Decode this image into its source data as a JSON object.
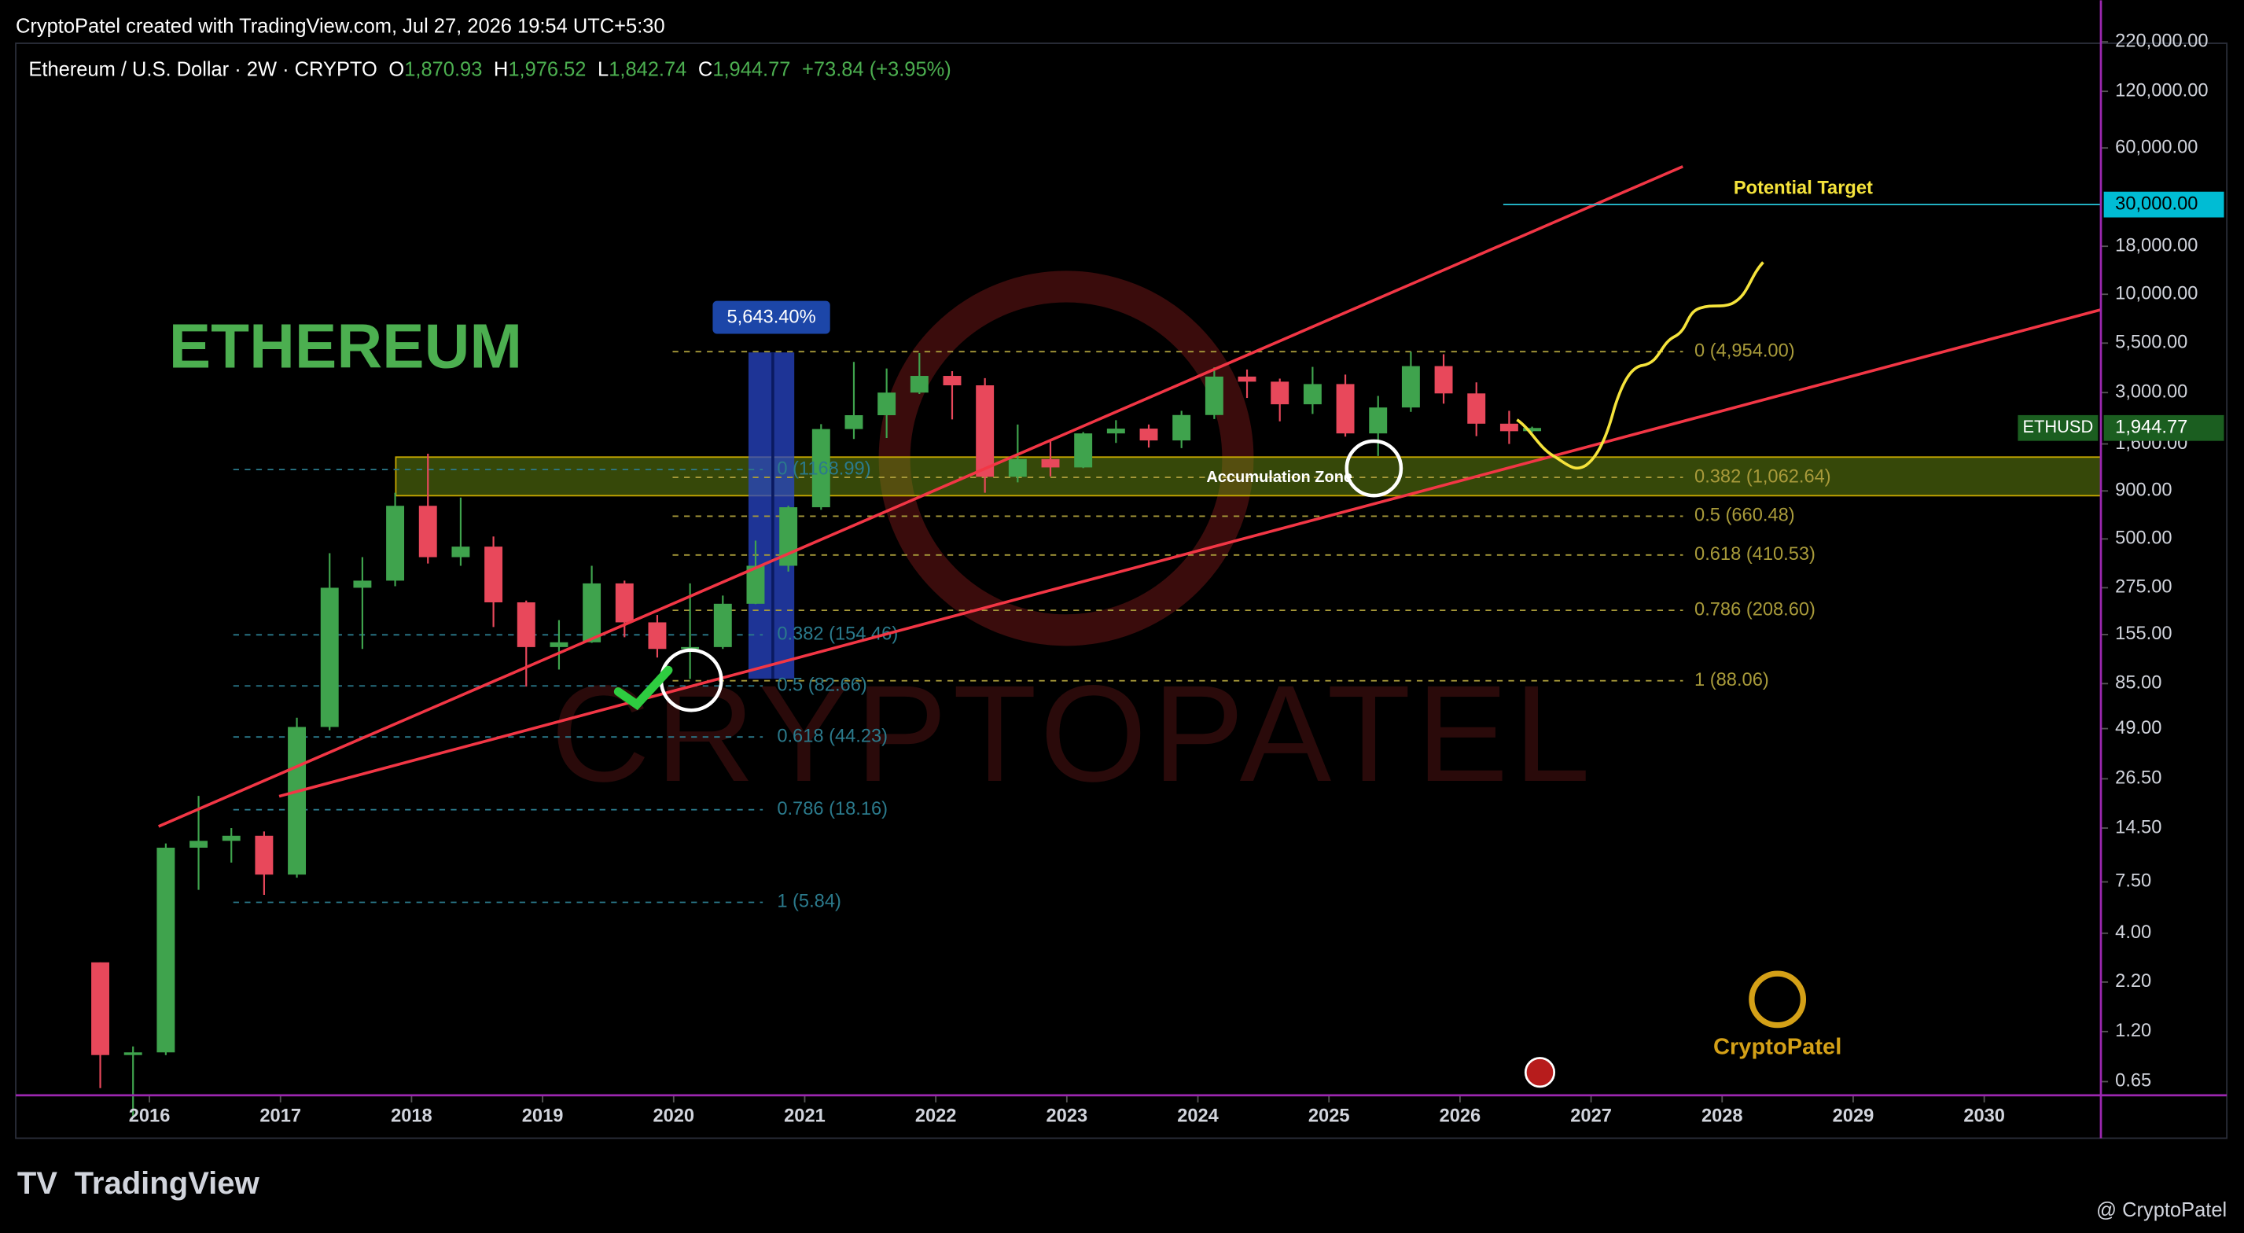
{
  "header": {
    "credit": "CryptoPatel created with TradingView.com, Jul 27, 2026 19:54 UTC+5:30",
    "symbol": "Ethereum / U.S. Dollar · 2W · CRYPTO",
    "ohlc": [
      {
        "key": "O",
        "value": "1,870.93"
      },
      {
        "key": "H",
        "value": "1,976.52"
      },
      {
        "key": "L",
        "value": "1,842.74"
      },
      {
        "key": "C",
        "value": "1,944.77"
      }
    ],
    "change": "+73.84 (+3.95%)"
  },
  "chart_data": {
    "type": "candlestick",
    "title": "ETHEREUM",
    "log_scale": true,
    "up_color": "#3fa34d",
    "down_color": "#e8485b",
    "x": [
      2015.625,
      2015.875,
      2016.125,
      2016.375,
      2016.625,
      2016.875,
      2017.125,
      2017.375,
      2017.625,
      2017.875,
      2018.125,
      2018.375,
      2018.625,
      2018.875,
      2019.125,
      2019.375,
      2019.625,
      2019.875,
      2020.125,
      2020.375,
      2020.625,
      2020.875,
      2021.125,
      2021.375,
      2021.625,
      2021.875,
      2022.125,
      2022.375,
      2022.625,
      2022.875,
      2023.125,
      2023.375,
      2023.625,
      2023.875,
      2024.125,
      2024.375,
      2024.625,
      2024.875,
      2025.125,
      2025.375,
      2025.625,
      2025.875,
      2026.125,
      2026.375,
      2026.55
    ],
    "open": [
      2.8,
      0.9,
      0.93,
      11.4,
      12.4,
      13.2,
      8.2,
      50,
      275,
      300,
      750,
      400,
      455,
      230,
      133,
      141,
      290,
      180,
      130,
      133,
      226,
      360,
      737,
      1920,
      2275,
      3000,
      3680,
      3280,
      1070,
      1330,
      1200,
      1820,
      1930,
      1670,
      2280,
      3650,
      3430,
      2600,
      3330,
      1820,
      2500,
      4150,
      2970,
      2050,
      1870.93
    ],
    "high": [
      2.8,
      1.0,
      12,
      21.5,
      14.5,
      13.9,
      56,
      420,
      400,
      880,
      1420,
      830,
      515,
      235,
      185,
      360,
      300,
      197,
      290,
      250,
      490,
      750,
      2040,
      4370,
      4030,
      4870,
      3900,
      3580,
      2030,
      1680,
      1850,
      2140,
      2030,
      2400,
      4090,
      3980,
      3560,
      4110,
      3740,
      2880,
      4950,
      4800,
      3400,
      2400,
      1976.52
    ],
    "low": [
      0.6,
      0.42,
      0.9,
      6.8,
      9.5,
      6.4,
      7.9,
      48,
      130,
      280,
      370,
      360,
      170,
      82,
      101,
      140,
      150,
      117,
      90,
      130,
      225,
      335,
      715,
      1700,
      1720,
      2950,
      2160,
      880,
      1000,
      1075,
      1190,
      1620,
      1530,
      1520,
      2170,
      2810,
      2110,
      2310,
      1750,
      1380,
      2370,
      2620,
      1760,
      1600,
      1842.74
    ],
    "close": [
      0.9,
      0.93,
      11.4,
      12.4,
      13.2,
      8.2,
      50,
      275,
      300,
      750,
      400,
      455,
      230,
      133,
      141,
      290,
      180,
      130,
      133,
      226,
      360,
      737,
      1920,
      2275,
      3000,
      3680,
      3280,
      1070,
      1330,
      1200,
      1820,
      1930,
      1670,
      2280,
      3650,
      3430,
      2600,
      3330,
      1820,
      2500,
      4150,
      2970,
      2050,
      1870,
      1944.77
    ],
    "xlim": [
      2014.98,
      2030.89
    ],
    "xticks": [
      2016,
      2017,
      2018,
      2019,
      2020,
      2021,
      2022,
      2023,
      2024,
      2025,
      2026,
      2027,
      2028,
      2029,
      2030
    ],
    "ylim": [
      0.55,
      220000
    ],
    "yticks": [
      0.65,
      {
        "value": 1.2,
        "label": "1.20"
      },
      {
        "value": 2.2,
        "label": "2.20"
      },
      {
        "value": 4,
        "label": "4.00"
      },
      {
        "value": 7.5,
        "label": "7.50"
      },
      {
        "value": 14.5,
        "label": "14.50"
      },
      {
        "value": 26.5,
        "label": "26.50"
      },
      {
        "value": 49,
        "label": "49.00"
      },
      {
        "value": 85,
        "label": "85.00"
      },
      {
        "value": 155,
        "label": "155.00"
      },
      {
        "value": 275,
        "label": "275.00"
      },
      {
        "value": 500,
        "label": "500.00"
      },
      {
        "value": 900,
        "label": "900.00"
      },
      {
        "value": 1600,
        "label": "1,600.00"
      },
      {
        "value": 3000,
        "label": "3,000.00"
      },
      {
        "value": 5500,
        "label": "5,500.00"
      },
      {
        "value": 10000,
        "label": "10,000.00"
      },
      {
        "value": 18000,
        "label": "18,000.00"
      },
      {
        "value": 60000,
        "label": "60,000.00"
      },
      {
        "value": 120000,
        "label": "120,000.00"
      },
      {
        "value": 220000,
        "label": "220,000.00"
      }
    ],
    "fib_levels_left": [
      {
        "value": 1168.99,
        "label": "0 (1168.99)"
      },
      {
        "value": 154.46,
        "label": "0.382 (154.46)"
      },
      {
        "value": 82.66,
        "label": "0.5 (82.66)"
      },
      {
        "value": 44.23,
        "label": "0.618 (44.23)"
      },
      {
        "value": 18.16,
        "label": "0.786 (18.16)"
      },
      {
        "value": 5.84,
        "label": "1 (5.84)"
      }
    ],
    "fib_levels_right": [
      {
        "value": 4954,
        "label": "0 (4,954.00)"
      },
      {
        "value": 1062.64,
        "label": "0.382 (1,062.64)"
      },
      {
        "value": 660.48,
        "label": "0.5 (660.48)"
      },
      {
        "value": 410.53,
        "label": "0.618 (410.53)"
      },
      {
        "value": 208.6,
        "label": "0.786 (208.60)"
      },
      {
        "value": 88.06,
        "label": "1 (88.06)"
      }
    ],
    "channel": [
      {
        "x": [
          2016.07,
          2027.7
        ],
        "y": [
          14.8,
          47800
        ],
        "color": "#f23645"
      },
      {
        "x": [
          2016.99,
          2030.89
        ],
        "y": [
          21.4,
          8280
        ],
        "color": "#f23645"
      }
    ],
    "zone": {
      "label": "Accumulation Zone",
      "range": [
        849,
        1362
      ],
      "x_start": 2017.88
    },
    "target": {
      "label": "Potential Target",
      "price_label": "30,000.00",
      "value": 30000,
      "x_start": 2026.33
    },
    "measure": {
      "label": "5,643.40%"
    },
    "last_price": {
      "symbol": "ETHUSD",
      "label": "1,944.77"
    }
  },
  "watermark": "CRYPTOPATEL",
  "brand": "CryptoPatel",
  "footer": {
    "logo": "TradingView",
    "handle": "@ CryptoPatel"
  }
}
